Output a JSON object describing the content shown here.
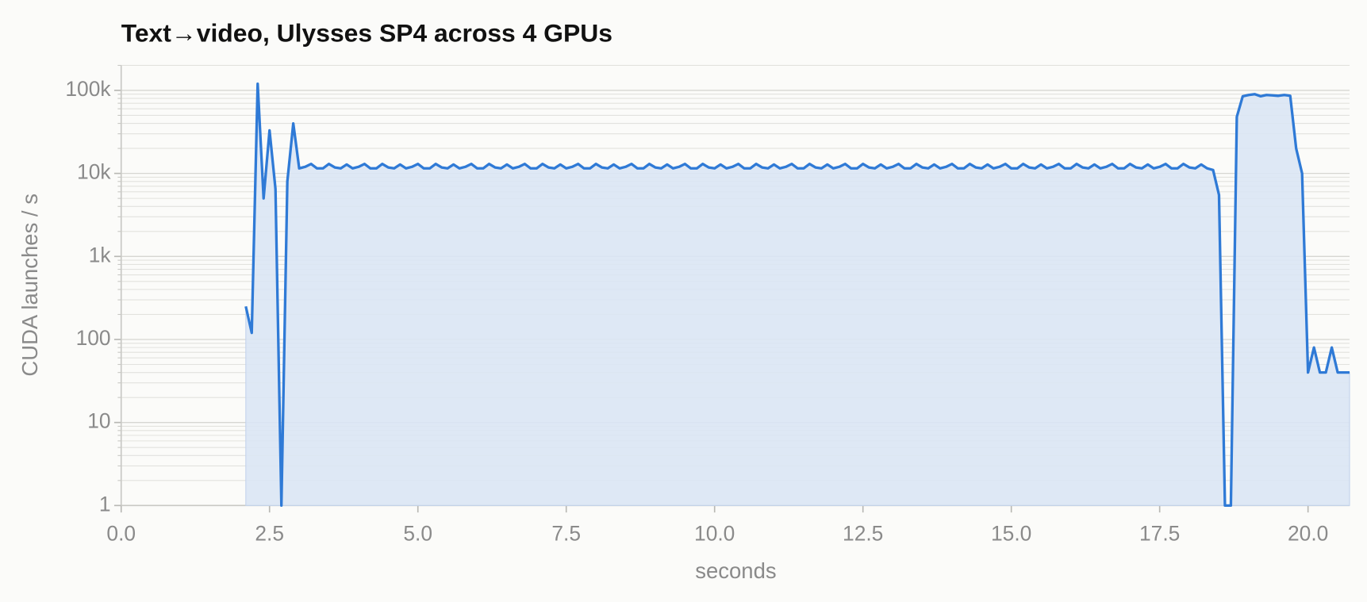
{
  "chart_data": {
    "type": "area",
    "title": "Text→video, Ulysses SP4 across 4 GPUs",
    "xlabel": "seconds",
    "ylabel": "CUDA launches / s",
    "color": "#2f7ad6",
    "fill": "#dae5f4",
    "log_y": true,
    "grid": true,
    "xlim": [
      0,
      20.7
    ],
    "ylim": [
      1,
      200000
    ],
    "xticks": [
      {
        "value": 0,
        "label": "0.0"
      },
      2.5,
      {
        "value": 5,
        "label": "5.0"
      },
      7.5,
      {
        "value": 10,
        "label": "10.0"
      },
      12.5,
      {
        "value": 15,
        "label": "15.0"
      },
      17.5,
      {
        "value": 20,
        "label": "20.0"
      }
    ],
    "yticks": [
      1,
      10,
      100,
      {
        "value": 1000,
        "label": "1k"
      },
      {
        "value": 10000,
        "label": "10k"
      },
      {
        "value": 100000,
        "label": "100k"
      }
    ],
    "yminor_ticks": [
      2,
      3,
      4,
      5,
      6,
      7,
      8,
      9,
      20,
      30,
      40,
      50,
      60,
      70,
      80,
      90,
      200,
      300,
      400,
      500,
      600,
      700,
      800,
      900,
      2000,
      3000,
      4000,
      5000,
      6000,
      7000,
      8000,
      9000,
      20000,
      30000,
      40000,
      50000,
      60000,
      70000,
      80000,
      90000,
      200000
    ],
    "x": [
      2.1,
      2.2,
      2.3,
      2.4,
      2.5,
      2.6,
      2.7,
      2.8,
      2.9,
      3.0,
      3.1,
      3.2,
      3.3,
      3.4,
      3.5,
      3.6,
      3.7,
      3.8,
      3.9,
      4.0,
      4.1,
      4.2,
      4.3,
      4.4,
      4.5,
      4.6,
      4.7,
      4.8,
      4.9,
      5.0,
      5.1,
      5.2,
      5.3,
      5.4,
      5.5,
      5.6,
      5.7,
      5.8,
      5.9,
      6.0,
      6.1,
      6.2,
      6.3,
      6.4,
      6.5,
      6.6,
      6.7,
      6.8,
      6.9,
      7.0,
      7.1,
      7.2,
      7.3,
      7.4,
      7.5,
      7.6,
      7.7,
      7.8,
      7.9,
      8.0,
      8.1,
      8.2,
      8.3,
      8.4,
      8.5,
      8.6,
      8.7,
      8.8,
      8.9,
      9.0,
      9.1,
      9.2,
      9.3,
      9.4,
      9.5,
      9.6,
      9.7,
      9.8,
      9.9,
      10.0,
      10.1,
      10.2,
      10.3,
      10.4,
      10.5,
      10.6,
      10.7,
      10.8,
      10.9,
      11.0,
      11.1,
      11.2,
      11.3,
      11.4,
      11.5,
      11.6,
      11.7,
      11.8,
      11.9,
      12.0,
      12.1,
      12.2,
      12.3,
      12.4,
      12.5,
      12.6,
      12.7,
      12.8,
      12.9,
      13.0,
      13.1,
      13.2,
      13.3,
      13.4,
      13.5,
      13.6,
      13.7,
      13.8,
      13.9,
      14.0,
      14.1,
      14.2,
      14.3,
      14.4,
      14.5,
      14.6,
      14.7,
      14.8,
      14.9,
      15.0,
      15.1,
      15.2,
      15.3,
      15.4,
      15.5,
      15.6,
      15.7,
      15.8,
      15.9,
      16.0,
      16.1,
      16.2,
      16.3,
      16.4,
      16.5,
      16.6,
      16.7,
      16.8,
      16.9,
      17.0,
      17.1,
      17.2,
      17.3,
      17.4,
      17.5,
      17.6,
      17.7,
      17.8,
      17.9,
      18.0,
      18.1,
      18.2,
      18.3,
      18.4,
      18.5,
      18.6,
      18.7,
      18.8,
      18.9,
      19.0,
      19.1,
      19.2,
      19.3,
      19.4,
      19.5,
      19.6,
      19.7,
      19.8,
      19.9,
      20.0,
      20.1,
      20.2,
      20.3,
      20.4,
      20.5,
      20.6,
      20.7
    ],
    "values": [
      250,
      120,
      120000,
      5000,
      33000,
      6500,
      1,
      8000,
      40000,
      11500,
      12000,
      13000,
      11500,
      11500,
      13000,
      11800,
      11500,
      12800,
      11500,
      12000,
      13000,
      11500,
      11500,
      13000,
      11800,
      11500,
      12800,
      11500,
      12000,
      13000,
      11500,
      11500,
      13000,
      11800,
      11500,
      12800,
      11500,
      12000,
      13000,
      11500,
      11500,
      13000,
      11800,
      11500,
      12800,
      11500,
      12000,
      13000,
      11500,
      11500,
      13000,
      11800,
      11500,
      12800,
      11500,
      12000,
      13000,
      11500,
      11500,
      13000,
      11800,
      11500,
      12800,
      11500,
      12000,
      13000,
      11500,
      11500,
      13000,
      11800,
      11500,
      12800,
      11500,
      12000,
      13000,
      11500,
      11500,
      13000,
      11800,
      11500,
      12800,
      11500,
      12000,
      13000,
      11500,
      11500,
      13000,
      11800,
      11500,
      12800,
      11500,
      12000,
      13000,
      11500,
      11500,
      13000,
      11800,
      11500,
      12800,
      11500,
      12000,
      13000,
      11500,
      11500,
      13000,
      11800,
      11500,
      12800,
      11500,
      12000,
      13000,
      11500,
      11500,
      13000,
      11800,
      11500,
      12800,
      11500,
      12000,
      13000,
      11500,
      11500,
      13000,
      11800,
      11500,
      12800,
      11500,
      12000,
      13000,
      11500,
      11500,
      13000,
      11800,
      11500,
      12800,
      11500,
      12000,
      13000,
      11500,
      11500,
      13000,
      11800,
      11500,
      12800,
      11500,
      12000,
      13000,
      11500,
      11500,
      13000,
      11800,
      11500,
      12800,
      11500,
      12000,
      13000,
      11500,
      11500,
      13000,
      11800,
      11500,
      12800,
      11500,
      11000,
      5500,
      1,
      1,
      48000,
      85000,
      88000,
      90000,
      85000,
      88000,
      87000,
      86000,
      88000,
      86000,
      20000,
      10000,
      40,
      80,
      40,
      40,
      80,
      40,
      40,
      40
    ]
  }
}
